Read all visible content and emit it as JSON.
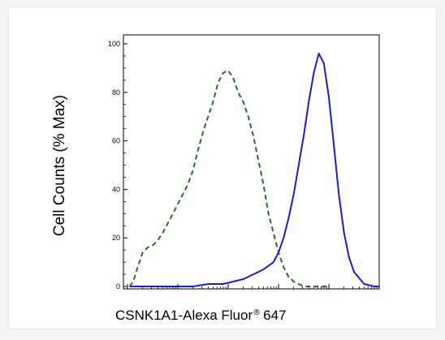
{
  "chart_data": {
    "type": "line",
    "title": "",
    "xlabel": "CSNK1A1-Alexa Fluor",
    "xlabel_mark": "®",
    "xlabel_suffix": "647",
    "ylabel": "Cell Counts (% Max)",
    "ylim": [
      0,
      100
    ],
    "yticks": [
      "0",
      "20",
      "40",
      "60",
      "80",
      "100"
    ],
    "xscale": "log",
    "xlim": [
      1,
      100000
    ],
    "grid": false,
    "legend": "none",
    "series": [
      {
        "style": "dashed",
        "color": "#2e6b2e",
        "x": [
          1.1,
          1.3,
          1.6,
          2,
          2.5,
          3.2,
          4,
          5,
          6.3,
          8,
          10,
          12.6,
          15.8,
          20,
          25,
          32,
          40,
          50,
          63,
          79,
          100,
          126,
          158,
          200,
          251,
          316,
          398,
          501,
          631,
          794,
          1000,
          1260,
          1580,
          2000,
          2510,
          3160,
          3980,
          5010,
          6310,
          7940,
          10000
        ],
        "y": [
          0,
          2,
          8,
          14,
          16,
          17,
          19,
          22,
          26,
          30,
          34,
          38,
          42,
          48,
          56,
          64,
          70,
          76,
          84,
          88,
          89,
          86,
          80,
          76,
          70,
          62,
          52,
          42,
          30,
          22,
          14,
          8,
          4,
          2,
          1,
          0,
          0,
          0,
          0,
          0,
          0
        ]
      },
      {
        "style": "solid",
        "color": "#1a1adc",
        "x": [
          1.1,
          2,
          5,
          10,
          20,
          40,
          79,
          126,
          200,
          316,
          501,
          794,
          1000,
          1260,
          1580,
          2000,
          2510,
          3160,
          3980,
          5010,
          6310,
          7940,
          10000,
          12600,
          15800,
          20000,
          25100,
          31600,
          50100,
          79400,
          100000
        ],
        "y": [
          0,
          0,
          0,
          0,
          0,
          1,
          1,
          2,
          3,
          5,
          7,
          10,
          14,
          20,
          28,
          38,
          50,
          62,
          76,
          88,
          96,
          92,
          78,
          58,
          38,
          22,
          12,
          6,
          1,
          0,
          0
        ]
      }
    ]
  }
}
